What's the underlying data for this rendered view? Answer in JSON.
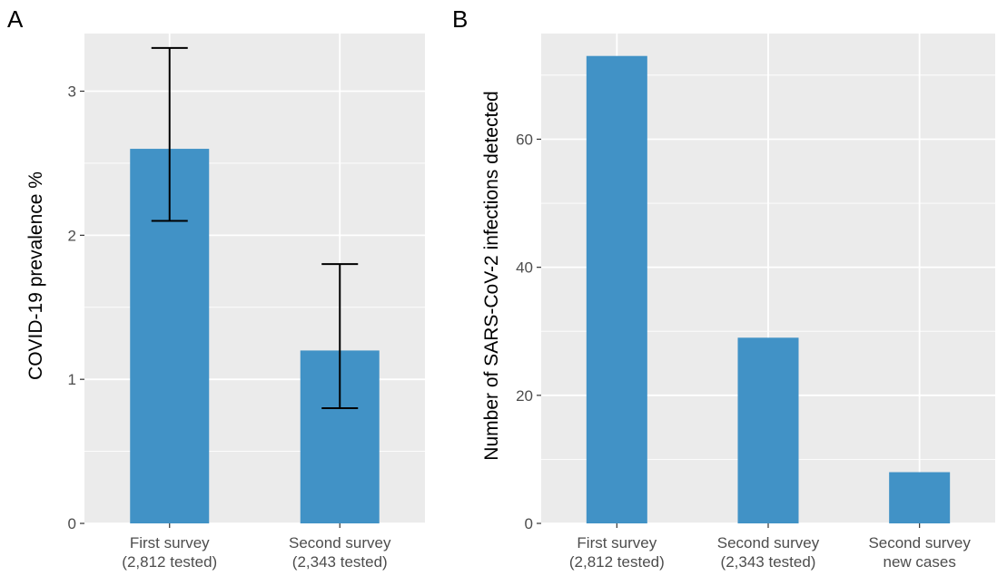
{
  "colors": {
    "bar": "#4192c6",
    "panel_background": "#ebebeb",
    "grid": "#ffffff",
    "error_bar": "#000000",
    "tick_text": "#4d4d4d"
  },
  "chart_data": [
    {
      "type": "bar",
      "panel_label": "A",
      "categories": [
        [
          "First survey",
          "(2,812 tested)"
        ],
        [
          "Second survey",
          "(2,343 tested)"
        ]
      ],
      "values": [
        2.6,
        1.2
      ],
      "error_low": [
        2.1,
        0.8
      ],
      "error_high": [
        3.3,
        1.8
      ],
      "xlabel": "",
      "ylabel": "COVID-19 prevalence %",
      "ylim": [
        0,
        3.4
      ],
      "yticks": [
        0,
        1,
        2,
        3
      ],
      "grid": true,
      "legend": "none"
    },
    {
      "type": "bar",
      "panel_label": "B",
      "categories": [
        [
          "First survey",
          "(2,812 tested)"
        ],
        [
          "Second survey",
          "(2,343 tested)"
        ],
        [
          "Second survey",
          "new cases"
        ]
      ],
      "values": [
        73,
        29,
        8
      ],
      "xlabel": "",
      "ylabel": "Number of SARS-CoV-2 infections detected",
      "ylim": [
        0,
        76.5
      ],
      "yticks": [
        0,
        20,
        40,
        60
      ],
      "grid": true,
      "legend": "none"
    }
  ]
}
